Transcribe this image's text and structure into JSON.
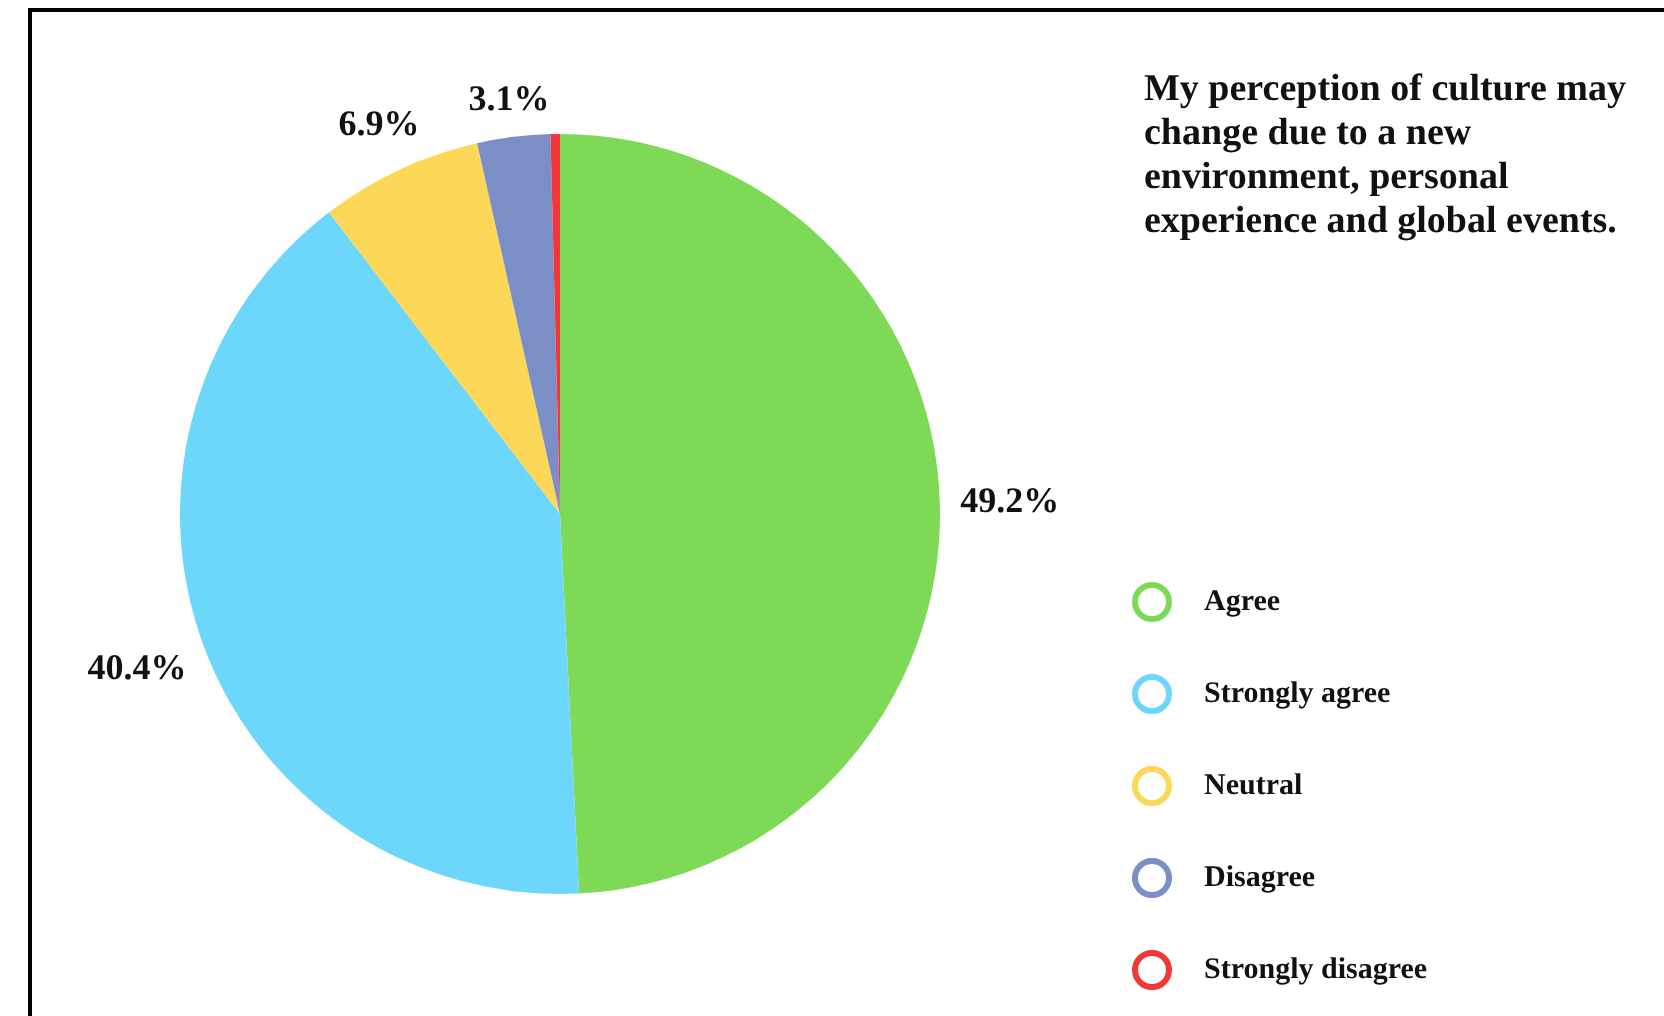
{
  "chart_data": {
    "type": "pie",
    "title": "My perception of culture may change due to a new environment, personal experience and global events.",
    "categories": [
      "Agree",
      "Strongly agree",
      "Neutral",
      "Disagree",
      "Strongly disagree"
    ],
    "values": [
      49.2,
      40.4,
      6.9,
      3.1,
      0.4
    ],
    "colors": [
      "#7ed957",
      "#6dd6fb",
      "#fdd858",
      "#7b8fc6",
      "#f2363a"
    ],
    "value_labels": [
      "49.2%",
      "40.4%",
      "6.9%",
      "3.1%",
      null
    ],
    "legend": "right"
  }
}
